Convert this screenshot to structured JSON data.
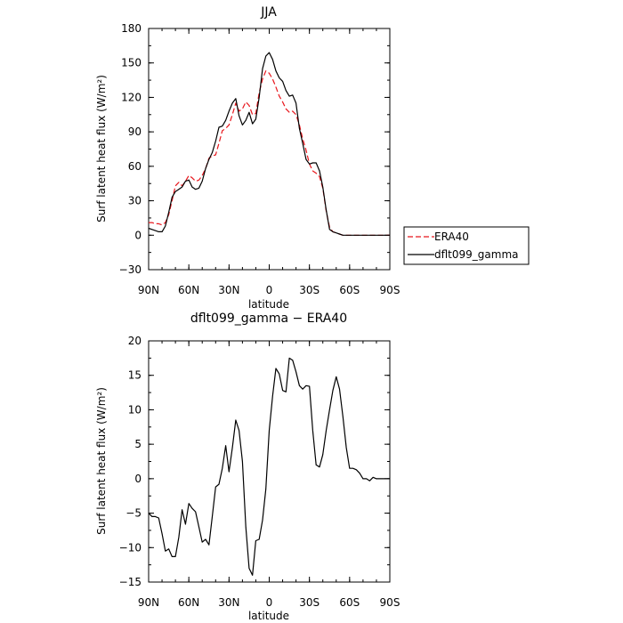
{
  "chart_data": [
    {
      "type": "line",
      "title": "JJA",
      "xlabel": "latitude",
      "ylabel": "Surf latent heat flux (W/m²)",
      "ylim": [
        -30,
        180
      ],
      "yticks": [
        -30,
        0,
        30,
        60,
        90,
        120,
        150,
        180
      ],
      "yticklabels": [
        "−30",
        "0",
        "30",
        "60",
        "90",
        "120",
        "150",
        "180"
      ],
      "xlim": [
        90,
        -90
      ],
      "xticks": [
        90,
        60,
        30,
        0,
        -30,
        -60,
        -90
      ],
      "xticklabels": [
        "90N",
        "60N",
        "30N",
        "0",
        "30S",
        "60S",
        "90S"
      ],
      "legend_placement": "outside-right",
      "series": [
        {
          "name": "ERA40",
          "color": "#e8161c",
          "dash": "dashed",
          "x": [
            90,
            87.5,
            85,
            82.5,
            80,
            77.5,
            75,
            72.5,
            70,
            67.5,
            65,
            62.5,
            60,
            57.5,
            55,
            52.5,
            50,
            47.5,
            45,
            42.5,
            40,
            37.5,
            35,
            32.5,
            30,
            27.5,
            25,
            22.5,
            20,
            17.5,
            15,
            12.5,
            10,
            7.5,
            5,
            2.5,
            0,
            -2.5,
            -5,
            -7.5,
            -10,
            -12.5,
            -15,
            -17.5,
            -20,
            -22.5,
            -25,
            -27.5,
            -30,
            -32.5,
            -35,
            -37.5,
            -40,
            -42.5,
            -45,
            -47.5,
            -50,
            -52.5,
            -55,
            -57.5,
            -60,
            -62.5,
            -65,
            -67.5,
            -70,
            -72.5,
            -75,
            -77.5,
            -80,
            -82.5,
            -85,
            -87.5,
            -90
          ],
          "y": [
            11,
            11,
            10,
            10,
            9,
            11,
            18,
            30,
            43,
            46,
            43,
            47,
            52,
            50,
            47,
            48,
            52,
            58,
            67,
            69,
            70,
            80,
            91,
            93,
            96,
            105,
            115,
            108,
            110,
            116,
            113,
            105,
            106,
            124,
            136,
            143,
            141,
            136,
            129,
            121,
            116,
            110,
            107,
            108,
            105,
            96,
            84,
            74,
            62,
            56,
            54,
            51,
            41,
            21,
            7,
            3,
            2,
            1,
            0,
            0,
            0,
            0,
            0,
            0,
            0,
            0,
            0,
            0,
            0,
            0,
            0,
            0,
            0
          ]
        },
        {
          "name": "dflt099_gamma",
          "color": "#000000",
          "dash": "solid",
          "x": [
            90,
            87.5,
            85,
            82.5,
            80,
            77.5,
            75,
            72.5,
            70,
            67.5,
            65,
            62.5,
            60,
            57.5,
            55,
            52.5,
            50,
            47.5,
            45,
            42.5,
            40,
            37.5,
            35,
            32.5,
            30,
            27.5,
            25,
            22.5,
            20,
            17.5,
            15,
            12.5,
            10,
            7.5,
            5,
            2.5,
            0,
            -2.5,
            -5,
            -7.5,
            -10,
            -12.5,
            -15,
            -17.5,
            -20,
            -22.5,
            -25,
            -27.5,
            -30,
            -32.5,
            -35,
            -37.5,
            -40,
            -42.5,
            -45,
            -47.5,
            -50,
            -52.5,
            -55,
            -57.5,
            -60,
            -62.5,
            -65,
            -67.5,
            -70,
            -72.5,
            -75,
            -77.5,
            -80,
            -82.5,
            -85,
            -87.5,
            -90
          ],
          "y": [
            6,
            5,
            4,
            3,
            3,
            8,
            20,
            33,
            38,
            40,
            42,
            47,
            48,
            42,
            40,
            41,
            47,
            58,
            66,
            72,
            82,
            94,
            95,
            100,
            108,
            115,
            119,
            104,
            96,
            100,
            107,
            97,
            101,
            120,
            145,
            156,
            159,
            153,
            143,
            137,
            134,
            126,
            121,
            122,
            115,
            93,
            80,
            66,
            62,
            63,
            63,
            56,
            42,
            22,
            5,
            3,
            2,
            1,
            0,
            0,
            0,
            0,
            0,
            0,
            0,
            0,
            0,
            0,
            0,
            0,
            0,
            0,
            0
          ]
        }
      ]
    },
    {
      "type": "line",
      "title": "dflt099_gamma − ERA40",
      "xlabel": "latitude",
      "ylabel": "Surf latent heat flux (W/m²)",
      "ylim": [
        -15,
        20
      ],
      "yticks": [
        -15,
        -10,
        -5,
        0,
        5,
        10,
        15,
        20
      ],
      "yticklabels": [
        "−15",
        "−10",
        "−5",
        "0",
        "5",
        "10",
        "15",
        "20"
      ],
      "xlim": [
        90,
        -90
      ],
      "xticks": [
        90,
        60,
        30,
        0,
        -30,
        -60,
        -90
      ],
      "xticklabels": [
        "90N",
        "60N",
        "30N",
        "0",
        "30S",
        "60S",
        "90S"
      ],
      "series": [
        {
          "color": "#000000",
          "dash": "solid",
          "x": [
            90,
            87.5,
            85,
            82.5,
            80,
            77.5,
            75,
            72.5,
            70,
            67.5,
            65,
            62.5,
            60,
            57.5,
            55,
            52.5,
            50,
            47.5,
            45,
            42.5,
            40,
            37.5,
            35,
            32.5,
            30,
            27.5,
            25,
            22.5,
            20,
            17.5,
            15,
            12.5,
            10,
            7.5,
            5,
            2.5,
            0,
            -2.5,
            -5,
            -7.5,
            -10,
            -12.5,
            -15,
            -17.5,
            -20,
            -22.5,
            -25,
            -27.5,
            -30,
            -32.5,
            -35,
            -37.5,
            -40,
            -42.5,
            -45,
            -47.5,
            -50,
            -52.5,
            -55,
            -57.5,
            -60,
            -62.5,
            -65,
            -67.5,
            -70,
            -72.5,
            -75,
            -77.5,
            -80,
            -82.5,
            -85,
            -87.5,
            -90
          ],
          "y": [
            -5,
            -5.5,
            -5.5,
            -5.7,
            -8,
            -10.5,
            -10.2,
            -11.3,
            -11.3,
            -8.5,
            -4.5,
            -6.6,
            -3.6,
            -4.3,
            -4.8,
            -7,
            -9.2,
            -8.8,
            -9.6,
            -5.5,
            -1.2,
            -0.8,
            1.5,
            4.8,
            1,
            4.5,
            8.5,
            7,
            2.5,
            -7,
            -13,
            -14,
            -9,
            -8.8,
            -6,
            -1.5,
            7,
            12,
            16,
            15.2,
            12.8,
            12.6,
            17.5,
            17.2,
            15.5,
            13.5,
            13,
            13.5,
            13.4,
            7,
            2,
            1.7,
            3.5,
            7,
            10,
            12.8,
            14.8,
            13,
            9,
            4.5,
            1.5,
            1.5,
            1.3,
            0.8,
            0,
            0,
            -0.3,
            0.2,
            0,
            0,
            0,
            0,
            0
          ]
        }
      ]
    }
  ]
}
